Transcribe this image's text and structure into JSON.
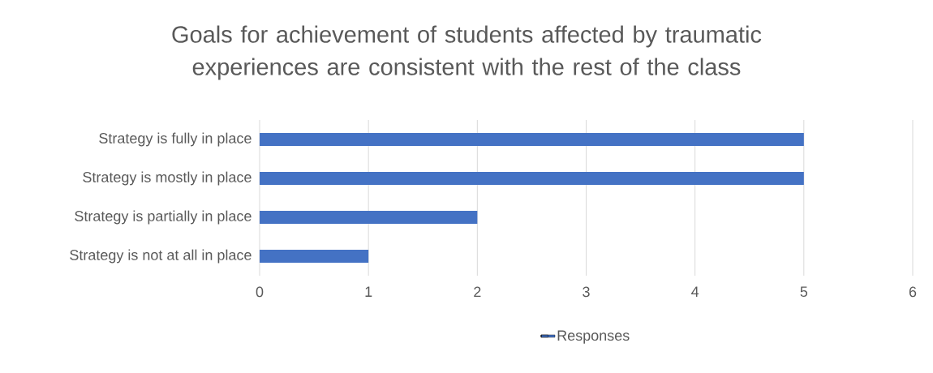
{
  "chart_data": {
    "type": "bar",
    "orientation": "horizontal",
    "title": "Goals for achievement of students affected by traumatic experiences are consistent with the rest of the class",
    "categories": [
      "Strategy is fully in place",
      "Strategy is mostly in place",
      "Strategy is partially in place",
      "Strategy is not at all in place"
    ],
    "series": [
      {
        "name": "Responses",
        "color": "#4472c4",
        "values": [
          5,
          5,
          2,
          1
        ]
      }
    ],
    "xlim": [
      0,
      6
    ],
    "xticks": [
      0,
      1,
      2,
      3,
      4,
      5,
      6
    ],
    "grid": "x",
    "legend": "bottom"
  }
}
